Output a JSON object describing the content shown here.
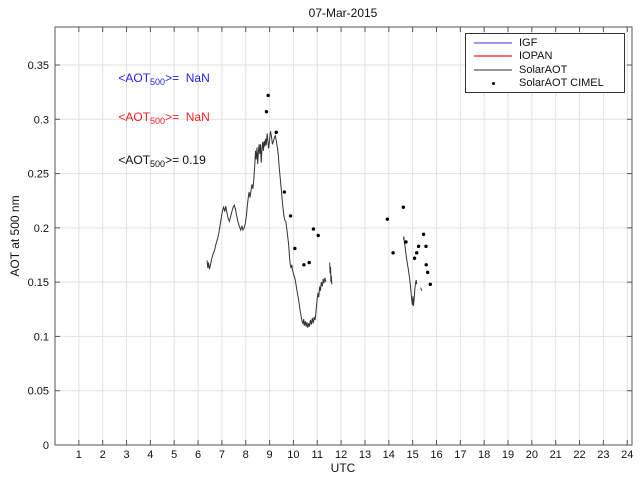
{
  "title": "07-Mar-2015",
  "xlabel": "UTC",
  "ylabel": "AOT at 500 nm",
  "annotations": {
    "igf": {
      "prefix": "<AOT",
      "sub": "500",
      "suffix": ">=  NaN",
      "color": "#2222ee"
    },
    "iopan": {
      "prefix": "<AOT",
      "sub": "500",
      "suffix": ">=  NaN",
      "color": "#ee2222"
    },
    "solar": {
      "prefix": "<AOT",
      "sub": "500",
      "suffix": ">= 0.19",
      "color": "#111111"
    }
  },
  "legend": {
    "items": [
      {
        "label": "IGF",
        "type": "line",
        "color": "#9a9af0"
      },
      {
        "label": "IOPAN",
        "type": "line",
        "color": "#f07070"
      },
      {
        "label": "SolarAOT",
        "type": "line",
        "color": "#999999"
      },
      {
        "label": "SolarAOT CIMEL",
        "type": "dot",
        "color": "#000000"
      }
    ]
  },
  "colors": {
    "grid": "#e2e2e2",
    "axis": "#555555",
    "tick_label": "#111111",
    "curve": "#333333",
    "dots": "#000000",
    "background": "#ffffff"
  },
  "chart_data": {
    "type": "line",
    "title": "07-Mar-2015",
    "xlabel": "UTC",
    "ylabel": "AOT at 500 nm",
    "xlim": [
      0,
      24.2
    ],
    "ylim": [
      0,
      0.385
    ],
    "grid": true,
    "legend_position": "top-right",
    "xticks": [
      1,
      2,
      3,
      4,
      5,
      6,
      7,
      8,
      9,
      10,
      11,
      12,
      13,
      14,
      15,
      16,
      17,
      18,
      19,
      20,
      21,
      22,
      23,
      24
    ],
    "xticklabels": [
      "1",
      "2",
      "3",
      "4",
      "5",
      "6",
      "7",
      "8",
      "9",
      "10",
      "11",
      "12",
      "13",
      "14",
      "15",
      "16",
      "17",
      "18",
      "19",
      "20",
      "21",
      "22",
      "23",
      "24"
    ],
    "yticks": [
      0,
      0.05,
      0.1,
      0.15,
      0.2,
      0.25,
      0.3,
      0.35
    ],
    "yticklabels": [
      "0",
      "0.05",
      "0.1",
      "0.15",
      "0.2",
      "0.25",
      "0.3",
      "0.35"
    ],
    "series": [
      {
        "name": "SolarAOT",
        "type": "line",
        "mean_aot500": 0.19,
        "segments": [
          [
            [
              6.38,
              0.17
            ],
            [
              6.41,
              0.163
            ],
            [
              6.44,
              0.168
            ],
            [
              6.48,
              0.162
            ],
            [
              6.52,
              0.166
            ],
            [
              6.57,
              0.171
            ],
            [
              6.63,
              0.176
            ],
            [
              6.7,
              0.18
            ],
            [
              6.76,
              0.186
            ],
            [
              6.82,
              0.19
            ],
            [
              6.88,
              0.196
            ],
            [
              6.93,
              0.203
            ],
            [
              6.98,
              0.21
            ],
            [
              7.03,
              0.216
            ],
            [
              7.07,
              0.219
            ],
            [
              7.12,
              0.215
            ],
            [
              7.16,
              0.22
            ],
            [
              7.21,
              0.214
            ],
            [
              7.26,
              0.209
            ],
            [
              7.31,
              0.206
            ],
            [
              7.36,
              0.21
            ],
            [
              7.42,
              0.215
            ],
            [
              7.47,
              0.219
            ],
            [
              7.52,
              0.221
            ],
            [
              7.57,
              0.217
            ],
            [
              7.62,
              0.211
            ],
            [
              7.68,
              0.205
            ],
            [
              7.74,
              0.201
            ],
            [
              7.79,
              0.198
            ],
            [
              7.84,
              0.202
            ],
            [
              7.88,
              0.198
            ],
            [
              7.93,
              0.2
            ],
            [
              7.98,
              0.204
            ],
            [
              8.03,
              0.212
            ],
            [
              8.07,
              0.221
            ],
            [
              8.11,
              0.229
            ],
            [
              8.14,
              0.233
            ],
            [
              8.18,
              0.228
            ],
            [
              8.22,
              0.234
            ],
            [
              8.26,
              0.24
            ],
            [
              8.3,
              0.236
            ],
            [
              8.34,
              0.246
            ],
            [
              8.38,
              0.258
            ],
            [
              8.41,
              0.271
            ],
            [
              8.44,
              0.263
            ],
            [
              8.47,
              0.274
            ],
            [
              8.5,
              0.259
            ],
            [
              8.53,
              0.27
            ],
            [
              8.56,
              0.277
            ],
            [
              8.59,
              0.268
            ],
            [
              8.62,
              0.277
            ],
            [
              8.65,
              0.26
            ],
            [
              8.68,
              0.273
            ],
            [
              8.71,
              0.279
            ],
            [
              8.74,
              0.271
            ],
            [
              8.77,
              0.28
            ],
            [
              8.8,
              0.275
            ],
            [
              8.83,
              0.282
            ],
            [
              8.86,
              0.276
            ],
            [
              8.9,
              0.287
            ],
            [
              8.93,
              0.28
            ],
            [
              8.96,
              0.273
            ],
            [
              9.0,
              0.281
            ],
            [
              9.04,
              0.289
            ],
            [
              9.08,
              0.284
            ],
            [
              9.12,
              0.277
            ],
            [
              9.16,
              0.28
            ],
            [
              9.2,
              0.283
            ],
            [
              9.24,
              0.285
            ],
            [
              9.28,
              0.28
            ],
            [
              9.32,
              0.275
            ],
            [
              9.36,
              0.268
            ],
            [
              9.4,
              0.257
            ],
            [
              9.44,
              0.247
            ],
            [
              9.48,
              0.238
            ],
            [
              9.52,
              0.228
            ],
            [
              9.56,
              0.219
            ],
            [
              9.6,
              0.211
            ],
            [
              9.64,
              0.207
            ],
            [
              9.68,
              0.206
            ],
            [
              9.72,
              0.199
            ],
            [
              9.76,
              0.192
            ],
            [
              9.8,
              0.184
            ],
            [
              9.84,
              0.172
            ],
            [
              9.87,
              0.166
            ],
            [
              9.9,
              0.163
            ],
            [
              9.93,
              0.166
            ],
            [
              9.96,
              0.161
            ],
            [
              10.0,
              0.158
            ],
            [
              10.04,
              0.155
            ],
            [
              10.08,
              0.152
            ],
            [
              10.12,
              0.146
            ],
            [
              10.16,
              0.141
            ],
            [
              10.2,
              0.136
            ],
            [
              10.24,
              0.13
            ],
            [
              10.28,
              0.124
            ],
            [
              10.32,
              0.119
            ],
            [
              10.36,
              0.114
            ],
            [
              10.4,
              0.112
            ],
            [
              10.43,
              0.116
            ],
            [
              10.46,
              0.11
            ],
            [
              10.5,
              0.114
            ],
            [
              10.53,
              0.109
            ],
            [
              10.57,
              0.113
            ],
            [
              10.6,
              0.108
            ],
            [
              10.64,
              0.112
            ],
            [
              10.67,
              0.109
            ],
            [
              10.71,
              0.115
            ],
            [
              10.75,
              0.111
            ],
            [
              10.79,
              0.117
            ],
            [
              10.83,
              0.112
            ],
            [
              10.87,
              0.118
            ],
            [
              10.91,
              0.115
            ],
            [
              10.95,
              0.124
            ],
            [
              10.99,
              0.133
            ],
            [
              11.03,
              0.14
            ],
            [
              11.06,
              0.136
            ],
            [
              11.1,
              0.146
            ],
            [
              11.13,
              0.142
            ],
            [
              11.17,
              0.15
            ],
            [
              11.21,
              0.146
            ],
            [
              11.25,
              0.153
            ],
            [
              11.28,
              0.149
            ],
            [
              11.32,
              0.154
            ],
            [
              11.36,
              0.15
            ]
          ],
          [
            [
              11.52,
              0.168
            ],
            [
              11.54,
              0.158
            ],
            [
              11.56,
              0.164
            ],
            [
              11.57,
              0.15
            ],
            [
              11.59,
              0.156
            ],
            [
              11.61,
              0.148
            ]
          ],
          [
            [
              14.62,
              0.189
            ],
            [
              14.63,
              0.192
            ],
            [
              14.66,
              0.186
            ],
            [
              14.69,
              0.181
            ],
            [
              14.72,
              0.176
            ],
            [
              14.75,
              0.171
            ],
            [
              14.78,
              0.167
            ],
            [
              14.81,
              0.163
            ],
            [
              14.84,
              0.159
            ],
            [
              14.87,
              0.154
            ],
            [
              14.9,
              0.148
            ],
            [
              14.93,
              0.141
            ],
            [
              14.96,
              0.134
            ],
            [
              14.99,
              0.129
            ],
            [
              15.01,
              0.137
            ],
            [
              15.03,
              0.128
            ],
            [
              15.06,
              0.134
            ],
            [
              15.09,
              0.143
            ],
            [
              15.12,
              0.149
            ],
            [
              15.15,
              0.152
            ],
            [
              15.17,
              0.148
            ]
          ],
          [
            [
              15.34,
              0.145
            ],
            [
              15.37,
              0.142
            ]
          ]
        ]
      },
      {
        "name": "SolarAOT CIMEL",
        "type": "scatter",
        "points": [
          [
            8.87,
            0.307
          ],
          [
            8.94,
            0.322
          ],
          [
            9.28,
            0.288
          ],
          [
            9.62,
            0.233
          ],
          [
            9.88,
            0.211
          ],
          [
            10.06,
            0.181
          ],
          [
            10.44,
            0.166
          ],
          [
            10.66,
            0.168
          ],
          [
            10.84,
            0.199
          ],
          [
            11.04,
            0.193
          ],
          [
            13.94,
            0.208
          ],
          [
            14.18,
            0.177
          ],
          [
            14.61,
            0.219
          ],
          [
            14.72,
            0.187
          ],
          [
            15.08,
            0.172
          ],
          [
            15.17,
            0.177
          ],
          [
            15.25,
            0.183
          ],
          [
            15.46,
            0.194
          ],
          [
            15.56,
            0.183
          ],
          [
            15.57,
            0.166
          ],
          [
            15.63,
            0.159
          ],
          [
            15.74,
            0.148
          ]
        ]
      },
      {
        "name": "IGF",
        "type": "line",
        "points": []
      },
      {
        "name": "IOPAN",
        "type": "line",
        "points": []
      }
    ]
  }
}
